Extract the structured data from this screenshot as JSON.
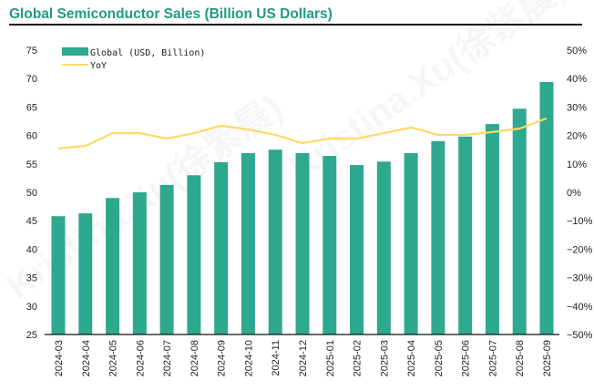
{
  "chart_data": {
    "type": "bar",
    "title": "Global Semiconductor Sales (Billion US Dollars)",
    "xlabel": "",
    "ylabel": "",
    "y2label": "",
    "categories": [
      "2024-03",
      "2024-04",
      "2024-05",
      "2024-06",
      "2024-07",
      "2024-08",
      "2024-09",
      "2024-10",
      "2024-11",
      "2024-12",
      "2025-01",
      "2025-02",
      "2025-03",
      "2025-04",
      "2025-05",
      "2025-06",
      "2025-07",
      "2025-08",
      "2025-09"
    ],
    "series": [
      {
        "name": "Global (USD, Billion)",
        "type": "bar",
        "axis": "left",
        "color": "#2ea88e",
        "values": [
          45.8,
          46.3,
          49.0,
          50.0,
          51.3,
          53.0,
          55.3,
          56.9,
          57.5,
          56.9,
          56.4,
          54.8,
          55.4,
          56.9,
          59.0,
          59.8,
          62.0,
          64.7,
          69.4
        ]
      },
      {
        "name": "YoY",
        "type": "line",
        "axis": "right",
        "color": "#ffd966",
        "unit": "%",
        "values": [
          15.4,
          16.3,
          20.8,
          20.8,
          18.9,
          20.8,
          23.4,
          22.1,
          20.2,
          17.3,
          18.9,
          18.9,
          20.8,
          22.8,
          20.2,
          20.2,
          21.2,
          22.4,
          26.0
        ]
      }
    ],
    "ylim": [
      25,
      75
    ],
    "yticks": [
      "75",
      "70",
      "65",
      "60",
      "55",
      "50",
      "45",
      "40",
      "35",
      "30",
      "25"
    ],
    "y2lim": [
      -50,
      50
    ],
    "y2ticks": [
      "50%",
      "40%",
      "30%",
      "20%",
      "10%",
      "0%",
      "−10%",
      "−20%",
      "−30%",
      "−40%",
      "−50%"
    ],
    "legend": {
      "position": "top-left",
      "entries": [
        "Global (USD, Billion)",
        "YoY"
      ]
    },
    "grid": false
  },
  "watermark": "Kristina.Xu(徐紫晨)"
}
